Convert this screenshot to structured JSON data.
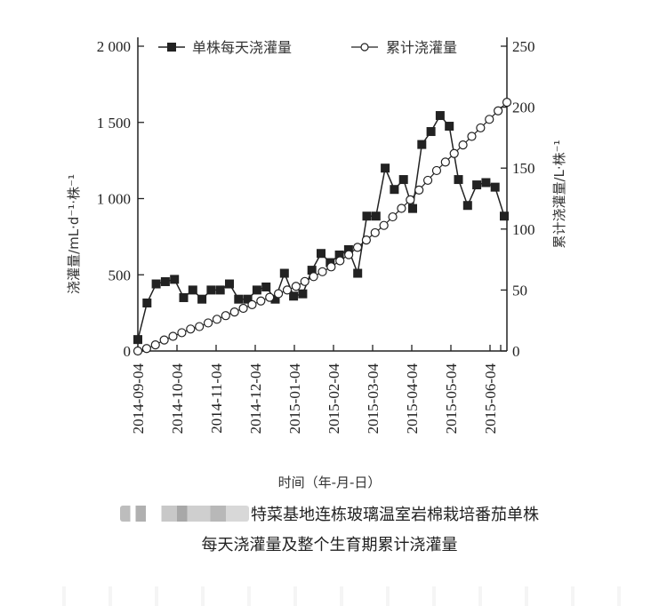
{
  "chart_data": {
    "type": "line",
    "title": "",
    "xlabel": "时间（年-月-日）",
    "ylabel": "浇灌量/mL·d⁻¹·株⁻¹",
    "ylabel_right": "累计浇灌量/L·株⁻¹",
    "ylim": [
      0,
      2000
    ],
    "ylim_right": [
      0,
      250
    ],
    "yticks": [
      "0",
      "500",
      "1 000",
      "1 500",
      "2 000"
    ],
    "yticks_right": [
      "0",
      "50",
      "100",
      "150",
      "200",
      "250"
    ],
    "xticks": [
      "2014-09-04",
      "2014-10-04",
      "2014-11-04",
      "2014-12-04",
      "2015-01-04",
      "2015-02-04",
      "2015-03-04",
      "2015-04-04",
      "2015-05-04",
      "2015-06-04"
    ],
    "grid": false,
    "legend_position": "top",
    "series": [
      {
        "name": "单株每天浇灌量",
        "axis": "left",
        "marker": "filled-square",
        "values": [
          75,
          315,
          440,
          455,
          470,
          350,
          400,
          340,
          400,
          400,
          440,
          340,
          340,
          400,
          420,
          340,
          510,
          360,
          375,
          530,
          640,
          580,
          630,
          665,
          510,
          885,
          885,
          1200,
          1060,
          1125,
          935,
          1355,
          1440,
          1545,
          1475,
          1125,
          955,
          1090,
          1105,
          1075,
          885
        ]
      },
      {
        "name": "累计浇灌量",
        "axis": "right",
        "marker": "open-circle",
        "values": [
          0,
          2,
          5,
          9,
          12,
          15,
          18,
          20,
          23,
          26,
          29,
          32,
          35,
          38,
          41,
          44,
          47,
          50,
          53,
          57,
          61,
          65,
          69,
          74,
          79,
          85,
          91,
          97,
          103,
          110,
          117,
          124,
          132,
          140,
          148,
          155,
          162,
          169,
          176,
          183,
          190,
          197,
          204
        ]
      }
    ]
  },
  "legend": {
    "series1_label": "单株每天浇灌量",
    "series2_label": "累计浇灌量"
  },
  "caption": {
    "line1": "特菜基地连栋玻璃温室岩棉栽培番茄单株",
    "line2": "每天浇灌量及整个生育期累计浇灌量"
  }
}
